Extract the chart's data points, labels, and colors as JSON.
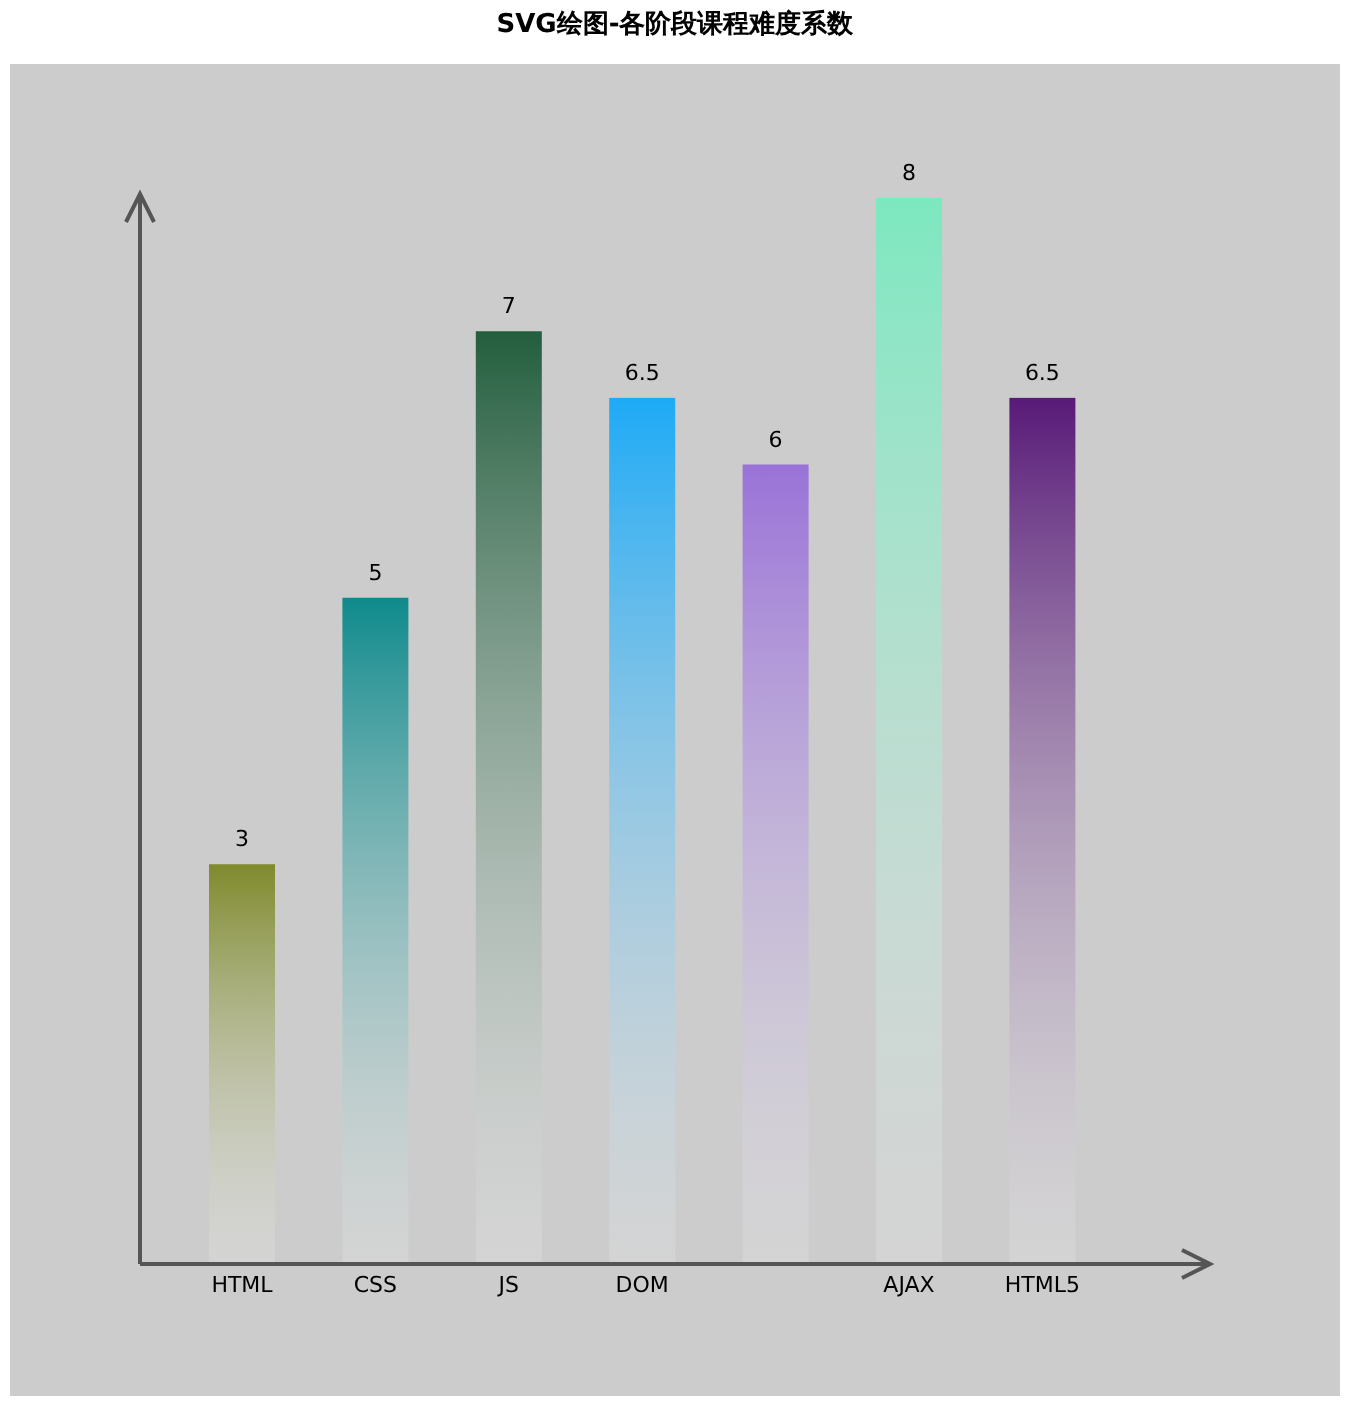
{
  "chart_data": {
    "type": "bar",
    "title": "SVG绘图-各阶段课程难度系数",
    "categories": [
      "HTML",
      "CSS",
      "JS",
      "DOM",
      null,
      "AJAX",
      "HTML5"
    ],
    "values": [
      3,
      5,
      7,
      6.5,
      6,
      8,
      6.5
    ],
    "colors": [
      "#7f8a2c",
      "#0f8a8c",
      "#235e3e",
      "#1eaaf6",
      "#9a72d8",
      "#7ce8c0",
      "#581a78"
    ],
    "ylim": [
      0,
      8
    ],
    "data_labels": true
  }
}
